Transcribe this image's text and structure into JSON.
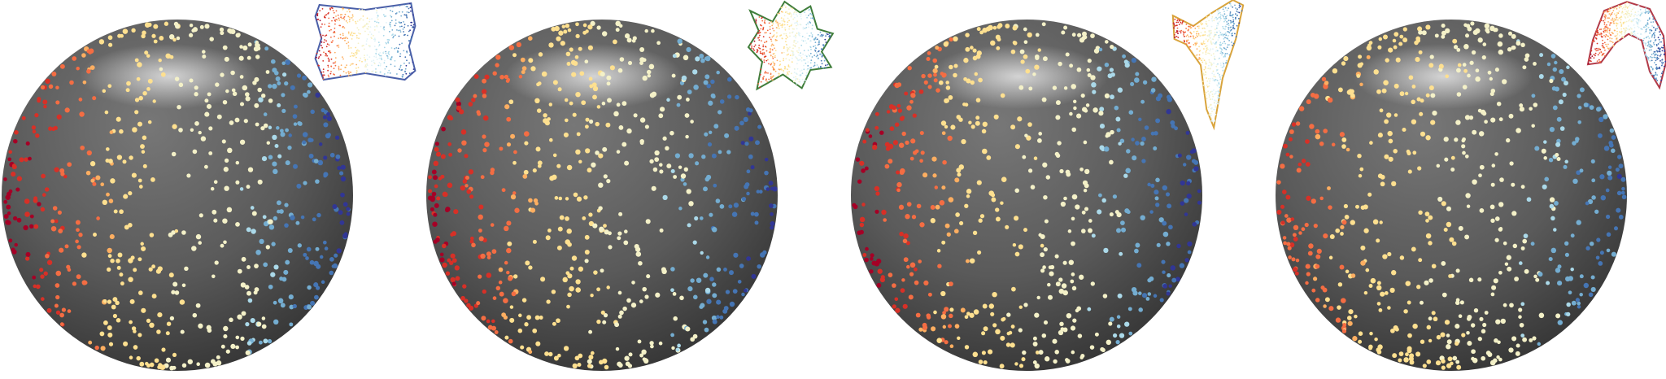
{
  "colors": {
    "background": "#ffffff",
    "sphere_base": "#5c5c5c",
    "sphere_dark": "#2e2e2e",
    "sphere_highlight": "#d8d8d8",
    "dot_palette": [
      "#a50026",
      "#d73027",
      "#f46d43",
      "#fdae61",
      "#fee090",
      "#f4f1c8",
      "#e0f3f8",
      "#abd9e9",
      "#74add1",
      "#4575b4",
      "#313695"
    ]
  },
  "panels": [
    {
      "id": "panel-1",
      "sphere": {
        "icon": "sphere-point-cloud"
      },
      "inset": {
        "icon": "flattened-patch-rectangle",
        "outline_color": "#4a5fa8"
      }
    },
    {
      "id": "panel-2",
      "sphere": {
        "icon": "sphere-point-cloud"
      },
      "inset": {
        "icon": "flattened-patch-star",
        "outline_color": "#3f7d3a"
      }
    },
    {
      "id": "panel-3",
      "sphere": {
        "icon": "sphere-point-cloud"
      },
      "inset": {
        "icon": "flattened-patch-horn",
        "outline_color": "#d9a43c"
      }
    },
    {
      "id": "panel-4",
      "sphere": {
        "icon": "sphere-point-cloud"
      },
      "inset": {
        "icon": "flattened-patch-arch",
        "outline_color": "#b23a48"
      }
    }
  ]
}
